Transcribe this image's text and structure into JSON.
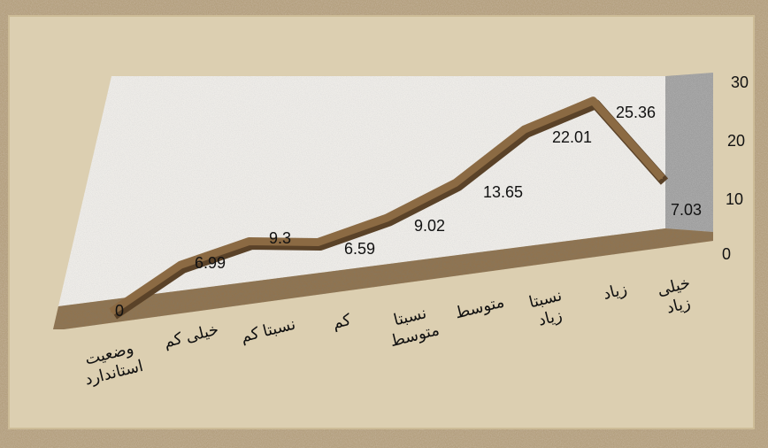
{
  "chart_data": {
    "type": "line",
    "categories": [
      "وضعیت\nاستاندارد",
      "خیلی کم",
      "نسبتا کم",
      "کم",
      "نسبتا\nمتوسط",
      "متوسط",
      "نسبتا\nزیاد",
      "زیاد",
      "خیلی\nزیاد"
    ],
    "values": [
      0,
      6.99,
      9.3,
      6.59,
      9.02,
      13.65,
      22.01,
      25.36,
      7.03
    ],
    "data_labels": [
      "0",
      "6.99",
      "9.3",
      "6.59",
      "9.02",
      "13.65",
      "22.01",
      "25.36",
      "7.03"
    ],
    "ylim": [
      0,
      30
    ],
    "yticks": [
      "0",
      "10",
      "20",
      "30"
    ],
    "colors": {
      "line": "#8b6a43",
      "frame": "#d8c9a8",
      "wall": "#eceae6",
      "floor": "#8f7350"
    }
  }
}
